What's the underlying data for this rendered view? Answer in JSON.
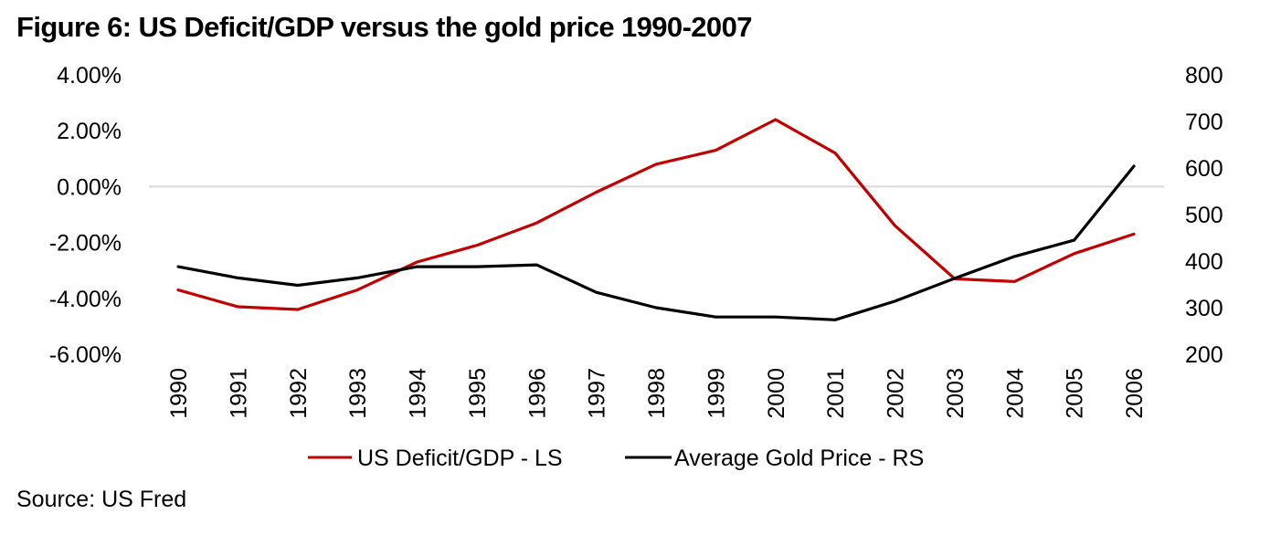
{
  "title": "Figure 6: US Deficit/GDP versus the gold price 1990-2007",
  "source": "Source: US Fred",
  "chart_data": {
    "type": "line",
    "title": "Figure 6: US Deficit/GDP versus the gold price 1990-2007",
    "x": [
      "1990",
      "1991",
      "1992",
      "1993",
      "1994",
      "1995",
      "1996",
      "1997",
      "1998",
      "1999",
      "2000",
      "2001",
      "2002",
      "2003",
      "2004",
      "2005",
      "2006"
    ],
    "series": [
      {
        "name": "US Deficit/GDP - LS",
        "axis": "left",
        "color": "#C00000",
        "values": [
          -3.7,
          -4.3,
          -4.4,
          -3.7,
          -2.7,
          -2.1,
          -1.3,
          -0.2,
          0.8,
          1.3,
          2.4,
          1.2,
          -1.4,
          -3.3,
          -3.4,
          -2.4,
          -1.7
        ]
      },
      {
        "name": "Average Gold Price - RS",
        "axis": "right",
        "color": "#000000",
        "values": [
          388,
          364,
          348,
          364,
          388,
          388,
          392,
          333,
          300,
          280,
          280,
          274,
          314,
          363,
          410,
          445,
          604
        ]
      }
    ],
    "left_axis": {
      "ylim": [
        -6,
        4
      ],
      "ticks": [
        4,
        2,
        0,
        -2,
        -4,
        -6
      ],
      "tick_labels": [
        "4.00%",
        "2.00%",
        "0.00%",
        "-2.00%",
        "-4.00%",
        "-6.00%"
      ]
    },
    "right_axis": {
      "ylim": [
        200,
        800
      ],
      "ticks": [
        800,
        700,
        600,
        500,
        400,
        300,
        200
      ],
      "tick_labels": [
        "800",
        "700",
        "600",
        "500",
        "400",
        "300",
        "200"
      ]
    },
    "xlabel": "",
    "ylabel_left": "",
    "ylabel_right": "",
    "gridlines": "zero-line only",
    "legend_position": "bottom-center",
    "legend": [
      "US Deficit/GDP - LS",
      "Average Gold Price - RS"
    ],
    "zero_line_color": "#D9D9D9"
  }
}
